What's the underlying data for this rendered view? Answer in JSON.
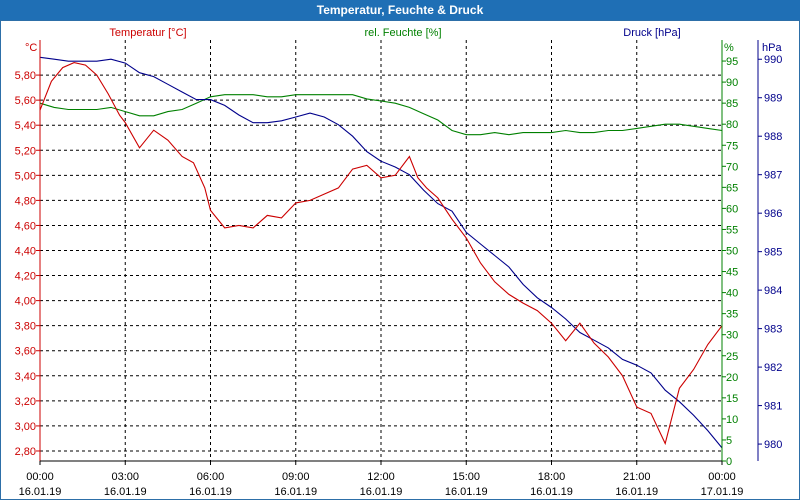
{
  "window": {
    "title": "Temperatur, Feuchte & Druck"
  },
  "chart_data": {
    "type": "line",
    "title": "Temperatur, Feuchte & Druck",
    "x_tick_labels": [
      [
        "00:00",
        "16.01.19"
      ],
      [
        "03:00",
        "16.01.19"
      ],
      [
        "06:00",
        "16.01.19"
      ],
      [
        "09:00",
        "16.01.19"
      ],
      [
        "12:00",
        "16.01.19"
      ],
      [
        "15:00",
        "16.01.19"
      ],
      [
        "18:00",
        "16.01.19"
      ],
      [
        "21:00",
        "16.01.19"
      ],
      [
        "00:00",
        "17.01.19"
      ]
    ],
    "xlim": [
      0,
      24
    ],
    "axes": {
      "temperature": {
        "label": "Temperatur [°C]",
        "unit": "°C",
        "color": "#cc0000",
        "ylim": [
          2.72,
          6.08
        ],
        "ticks": [
          2.8,
          3.0,
          3.2,
          3.4,
          3.6,
          3.8,
          4.0,
          4.2,
          4.4,
          4.6,
          4.8,
          5.0,
          5.2,
          5.4,
          5.6,
          5.8
        ],
        "tick_labels": [
          "2,80",
          "3,00",
          "3,20",
          "3,40",
          "3,60",
          "3,80",
          "4,00",
          "4,20",
          "4,40",
          "4,60",
          "4,80",
          "5,00",
          "5,20",
          "5,40",
          "5,60",
          "5,80"
        ]
      },
      "humidity": {
        "label": "rel. Feuchte [%]",
        "unit": "%",
        "color": "#008000",
        "ylim": [
          0,
          100
        ],
        "ticks": [
          0,
          5,
          10,
          15,
          20,
          25,
          30,
          35,
          40,
          45,
          50,
          55,
          60,
          65,
          70,
          75,
          80,
          85,
          90,
          95
        ],
        "tick_labels": [
          "0",
          "5",
          "10",
          "15",
          "20",
          "25",
          "30",
          "35",
          "40",
          "45",
          "50",
          "55",
          "60",
          "65",
          "70",
          "75",
          "80",
          "85",
          "90",
          "95"
        ]
      },
      "pressure": {
        "label": "Druck [hPa]",
        "unit": "hPa",
        "color": "#00008b",
        "ylim": [
          979.56,
          990.5
        ],
        "ticks": [
          980,
          981,
          982,
          983,
          984,
          985,
          986,
          987,
          988,
          989,
          990
        ],
        "tick_labels": [
          "980",
          "981",
          "982",
          "983",
          "984",
          "985",
          "986",
          "987",
          "988",
          "989",
          "990"
        ]
      }
    },
    "series": [
      {
        "name": "Temperatur [°C]",
        "axis": "temperature",
        "color": "#cc0000",
        "x": [
          0,
          0.4,
          0.8,
          1.2,
          1.6,
          2.0,
          2.4,
          2.8,
          3.0,
          3.5,
          4.0,
          4.5,
          5.0,
          5.4,
          5.8,
          6.0,
          6.5,
          7.0,
          7.5,
          8.0,
          8.5,
          9.0,
          9.5,
          10.0,
          10.5,
          11.0,
          11.5,
          12.0,
          12.5,
          13.0,
          13.3,
          13.6,
          14.0,
          14.5,
          15.0,
          15.5,
          16.0,
          16.5,
          17.0,
          17.5,
          18.0,
          18.5,
          19.0,
          19.5,
          20.0,
          20.5,
          21.0,
          21.5,
          22.0,
          22.5,
          23.0,
          23.5,
          24.0
        ],
        "values": [
          5.52,
          5.75,
          5.86,
          5.9,
          5.88,
          5.8,
          5.65,
          5.48,
          5.42,
          5.22,
          5.36,
          5.28,
          5.15,
          5.1,
          4.9,
          4.72,
          4.58,
          4.6,
          4.58,
          4.68,
          4.66,
          4.78,
          4.8,
          4.85,
          4.9,
          5.05,
          5.08,
          4.98,
          5.0,
          5.15,
          4.98,
          4.9,
          4.82,
          4.65,
          4.5,
          4.3,
          4.15,
          4.05,
          3.98,
          3.92,
          3.82,
          3.68,
          3.82,
          3.66,
          3.55,
          3.4,
          3.15,
          3.1,
          2.86,
          3.3,
          3.45,
          3.65,
          3.8
        ]
      },
      {
        "name": "rel. Feuchte [%]",
        "axis": "humidity",
        "color": "#008000",
        "x": [
          0,
          0.5,
          1.0,
          1.5,
          2.0,
          2.5,
          3.0,
          3.5,
          4.0,
          4.5,
          5.0,
          5.5,
          6.0,
          6.5,
          7.0,
          7.5,
          8.0,
          8.5,
          9.0,
          9.5,
          10.0,
          10.5,
          11.0,
          11.5,
          12.0,
          12.5,
          13.0,
          13.5,
          14.0,
          14.5,
          15.0,
          15.5,
          16.0,
          16.5,
          17.0,
          17.5,
          18.0,
          18.5,
          19.0,
          19.5,
          20.0,
          20.5,
          21.0,
          21.5,
          22.0,
          22.5,
          23.0,
          23.5,
          24.0
        ],
        "values": [
          85,
          84,
          83.5,
          83.5,
          83.5,
          84,
          83,
          82,
          82,
          83,
          83.5,
          85,
          86.5,
          87,
          87,
          87,
          86.5,
          86.5,
          87,
          87,
          87,
          87,
          87,
          86,
          85.5,
          85,
          84,
          82.5,
          81,
          78.5,
          77.5,
          77.5,
          78,
          77.5,
          78,
          78,
          78,
          78.5,
          78,
          78,
          78.5,
          78.5,
          79,
          79.5,
          80,
          80,
          79.5,
          79,
          78.5
        ]
      },
      {
        "name": "Druck [hPa]",
        "axis": "pressure",
        "color": "#00008b",
        "x": [
          0,
          0.5,
          1.0,
          1.5,
          2.0,
          2.5,
          3.0,
          3.5,
          4.0,
          4.5,
          5.0,
          5.5,
          6.0,
          6.5,
          7.0,
          7.5,
          8.0,
          8.5,
          9.0,
          9.5,
          10.0,
          10.5,
          11.0,
          11.5,
          12.0,
          12.5,
          13.0,
          13.5,
          14.0,
          14.5,
          15.0,
          15.5,
          16.0,
          16.5,
          17.0,
          17.5,
          18.0,
          18.5,
          19.0,
          19.5,
          20.0,
          20.5,
          21.0,
          21.5,
          22.0,
          22.5,
          23.0,
          23.5,
          24.0
        ],
        "values": [
          990.05,
          990.0,
          989.95,
          989.95,
          989.95,
          990.0,
          989.9,
          989.65,
          989.55,
          989.35,
          989.15,
          988.95,
          988.95,
          988.8,
          988.55,
          988.35,
          988.35,
          988.4,
          988.5,
          988.6,
          988.5,
          988.3,
          988.0,
          987.6,
          987.35,
          987.2,
          987.0,
          986.6,
          986.25,
          986.05,
          985.5,
          985.2,
          984.9,
          984.6,
          984.15,
          983.8,
          983.55,
          983.25,
          982.9,
          982.7,
          982.5,
          982.2,
          982.05,
          981.85,
          981.4,
          981.1,
          980.75,
          980.35,
          979.9
        ]
      }
    ]
  }
}
